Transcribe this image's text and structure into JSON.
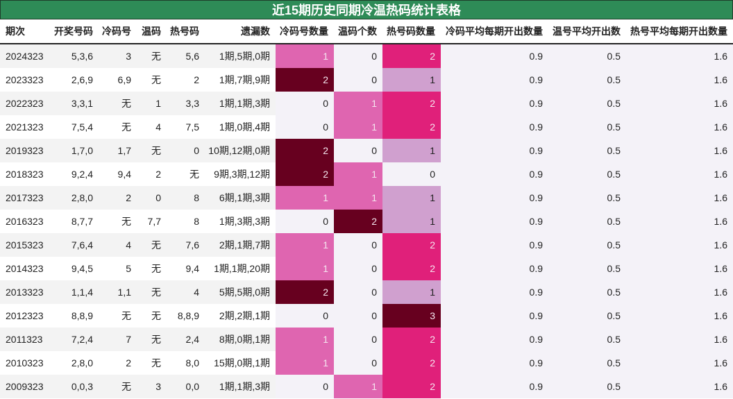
{
  "title": "近15期历史同期冷温热码统计表格",
  "columns": [
    "期次",
    "开奖号码",
    "冷码号",
    "温码",
    "热号码",
    "遗漏数",
    "冷码号数量",
    "温码个数",
    "热号码数量",
    "冷码平均每期开出数量",
    "温号平均开出数",
    "热号平均每期开出数量"
  ],
  "colors": {
    "title_bg": "#2e8b57",
    "cold_1": "#df65b0",
    "cold_2": "#67001f",
    "warm_1": "#df65b0",
    "warm_2": "#67001f",
    "hot_1": "#d0a0cf",
    "hot_2": "#e0207a",
    "hot_3": "#67001f",
    "zero_bg": "#f4f2f8"
  },
  "rows": [
    {
      "period": "2024323",
      "numbers": "5,3,6",
      "cold": "3",
      "warm": "无",
      "hot": "5,6",
      "miss": "1期,5期,0期",
      "cold_count": "1",
      "warm_count": "0",
      "hot_count": "2",
      "cold_avg": "0.9",
      "warm_avg": "0.5",
      "hot_avg": "1.6"
    },
    {
      "period": "2023323",
      "numbers": "2,6,9",
      "cold": "6,9",
      "warm": "无",
      "hot": "2",
      "miss": "1期,7期,9期",
      "cold_count": "2",
      "warm_count": "0",
      "hot_count": "1",
      "cold_avg": "0.9",
      "warm_avg": "0.5",
      "hot_avg": "1.6"
    },
    {
      "period": "2022323",
      "numbers": "3,3,1",
      "cold": "无",
      "warm": "1",
      "hot": "3,3",
      "miss": "1期,1期,3期",
      "cold_count": "0",
      "warm_count": "1",
      "hot_count": "2",
      "cold_avg": "0.9",
      "warm_avg": "0.5",
      "hot_avg": "1.6"
    },
    {
      "period": "2021323",
      "numbers": "7,5,4",
      "cold": "无",
      "warm": "4",
      "hot": "7,5",
      "miss": "1期,0期,4期",
      "cold_count": "0",
      "warm_count": "1",
      "hot_count": "2",
      "cold_avg": "0.9",
      "warm_avg": "0.5",
      "hot_avg": "1.6"
    },
    {
      "period": "2019323",
      "numbers": "1,7,0",
      "cold": "1,7",
      "warm": "无",
      "hot": "0",
      "miss": "10期,12期,0期",
      "cold_count": "2",
      "warm_count": "0",
      "hot_count": "1",
      "cold_avg": "0.9",
      "warm_avg": "0.5",
      "hot_avg": "1.6"
    },
    {
      "period": "2018323",
      "numbers": "9,2,4",
      "cold": "9,4",
      "warm": "2",
      "hot": "无",
      "miss": "9期,3期,12期",
      "cold_count": "2",
      "warm_count": "1",
      "hot_count": "0",
      "cold_avg": "0.9",
      "warm_avg": "0.5",
      "hot_avg": "1.6"
    },
    {
      "period": "2017323",
      "numbers": "2,8,0",
      "cold": "2",
      "warm": "0",
      "hot": "8",
      "miss": "6期,1期,3期",
      "cold_count": "1",
      "warm_count": "1",
      "hot_count": "1",
      "cold_avg": "0.9",
      "warm_avg": "0.5",
      "hot_avg": "1.6"
    },
    {
      "period": "2016323",
      "numbers": "8,7,7",
      "cold": "无",
      "warm": "7,7",
      "hot": "8",
      "miss": "1期,3期,3期",
      "cold_count": "0",
      "warm_count": "2",
      "hot_count": "1",
      "cold_avg": "0.9",
      "warm_avg": "0.5",
      "hot_avg": "1.6"
    },
    {
      "period": "2015323",
      "numbers": "7,6,4",
      "cold": "4",
      "warm": "无",
      "hot": "7,6",
      "miss": "2期,1期,7期",
      "cold_count": "1",
      "warm_count": "0",
      "hot_count": "2",
      "cold_avg": "0.9",
      "warm_avg": "0.5",
      "hot_avg": "1.6"
    },
    {
      "period": "2014323",
      "numbers": "9,4,5",
      "cold": "5",
      "warm": "无",
      "hot": "9,4",
      "miss": "1期,1期,20期",
      "cold_count": "1",
      "warm_count": "0",
      "hot_count": "2",
      "cold_avg": "0.9",
      "warm_avg": "0.5",
      "hot_avg": "1.6"
    },
    {
      "period": "2013323",
      "numbers": "1,1,4",
      "cold": "1,1",
      "warm": "无",
      "hot": "4",
      "miss": "5期,5期,0期",
      "cold_count": "2",
      "warm_count": "0",
      "hot_count": "1",
      "cold_avg": "0.9",
      "warm_avg": "0.5",
      "hot_avg": "1.6"
    },
    {
      "period": "2012323",
      "numbers": "8,8,9",
      "cold": "无",
      "warm": "无",
      "hot": "8,8,9",
      "miss": "2期,2期,1期",
      "cold_count": "0",
      "warm_count": "0",
      "hot_count": "3",
      "cold_avg": "0.9",
      "warm_avg": "0.5",
      "hot_avg": "1.6"
    },
    {
      "period": "2011323",
      "numbers": "7,2,4",
      "cold": "7",
      "warm": "无",
      "hot": "2,4",
      "miss": "8期,0期,1期",
      "cold_count": "1",
      "warm_count": "0",
      "hot_count": "2",
      "cold_avg": "0.9",
      "warm_avg": "0.5",
      "hot_avg": "1.6"
    },
    {
      "period": "2010323",
      "numbers": "2,8,0",
      "cold": "2",
      "warm": "无",
      "hot": "8,0",
      "miss": "15期,0期,1期",
      "cold_count": "1",
      "warm_count": "0",
      "hot_count": "2",
      "cold_avg": "0.9",
      "warm_avg": "0.5",
      "hot_avg": "1.6"
    },
    {
      "period": "2009323",
      "numbers": "0,0,3",
      "cold": "无",
      "warm": "3",
      "hot": "0,0",
      "miss": "1期,1期,3期",
      "cold_count": "0",
      "warm_count": "1",
      "hot_count": "2",
      "cold_avg": "0.9",
      "warm_avg": "0.5",
      "hot_avg": "1.6"
    }
  ]
}
